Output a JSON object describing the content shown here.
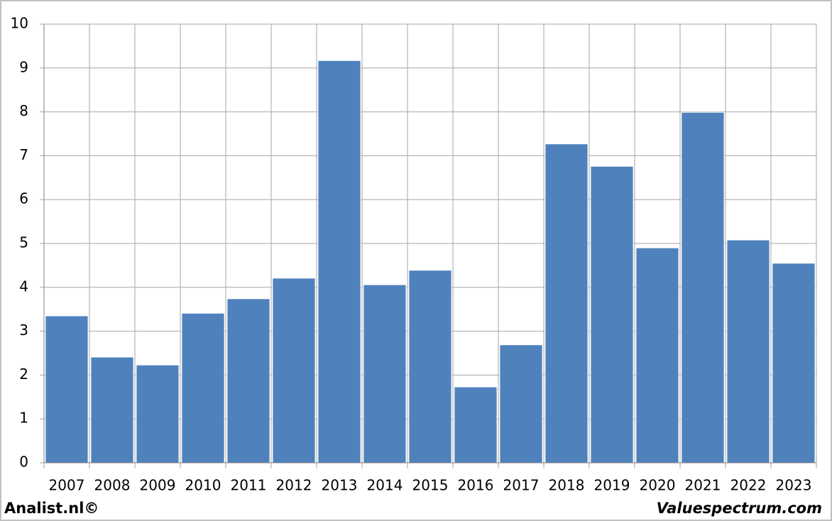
{
  "chart_data": {
    "type": "bar",
    "categories": [
      "2007",
      "2008",
      "2009",
      "2010",
      "2011",
      "2012",
      "2013",
      "2014",
      "2015",
      "2016",
      "2017",
      "2018",
      "2019",
      "2020",
      "2021",
      "2022",
      "2023"
    ],
    "values": [
      3.35,
      2.41,
      2.23,
      3.41,
      3.74,
      4.21,
      9.17,
      4.06,
      4.39,
      1.73,
      2.69,
      7.27,
      6.76,
      4.9,
      7.99,
      5.08,
      4.55
    ],
    "color": "#4f81bd",
    "ylim": [
      0,
      10
    ],
    "yticks": [
      0,
      1,
      2,
      3,
      4,
      5,
      6,
      7,
      8,
      9,
      10
    ],
    "grid": true
  },
  "footer": {
    "left": "Analist.nl©",
    "right": "Valuespectrum.com"
  }
}
